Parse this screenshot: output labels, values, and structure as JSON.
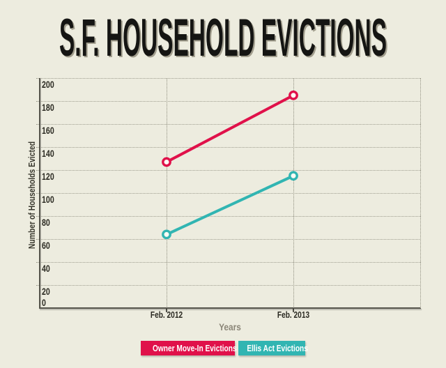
{
  "chart_data": {
    "type": "line",
    "title": "S.F. HOUSEHOLD EVICTIONS",
    "xlabel": "Years",
    "ylabel": "Number of Households Evicted",
    "categories": [
      "Feb. 2012",
      "Feb. 2013"
    ],
    "series": [
      {
        "name": "Owner Move-In Evictions",
        "values": [
          127,
          185
        ],
        "color": "#e0114a"
      },
      {
        "name": "Ellis Act Evictions",
        "values": [
          64,
          115
        ],
        "color": "#31b5b2"
      }
    ],
    "y_ticks": [
      0,
      20,
      40,
      60,
      80,
      100,
      120,
      140,
      160,
      180,
      200
    ],
    "ylim": [
      0,
      200
    ],
    "grid": "dotted",
    "legend_position": "bottom-center"
  },
  "colors": {
    "background": "#edecdf",
    "axis": "#55544b",
    "gridline": "#9e9d8e",
    "tick_text": "#2b2a22",
    "muted_text": "#8b8678",
    "owner_move_in": "#e0114a",
    "ellis_act": "#31b5b2",
    "legend_text": "#ffffff",
    "title_text": "#151513"
  }
}
